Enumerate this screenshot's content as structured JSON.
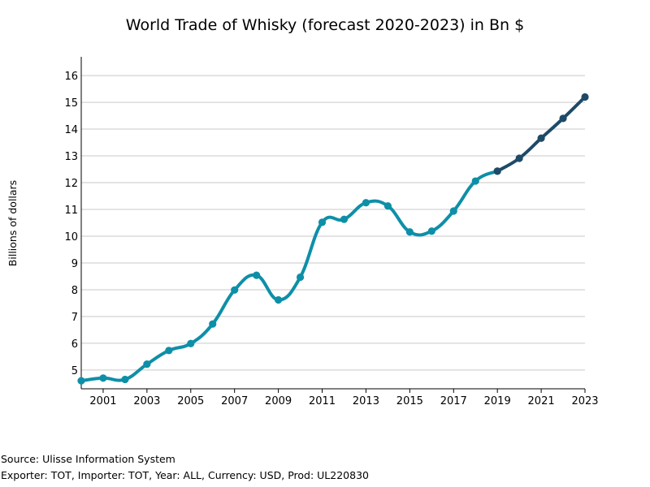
{
  "colors": {
    "actual": "#0e8fa8",
    "forecast": "#1e4a68",
    "grid": "#c9c9c9"
  },
  "footer": {
    "source": "Source: Ulisse Information System",
    "details": "Exporter: TOT, Importer: TOT, Year: ALL, Currency: USD, Prod: UL220830"
  },
  "chart_data": {
    "type": "line",
    "title": "World Trade of Whisky (forecast 2020-2023) in Bn $",
    "xlabel": "",
    "ylabel": "Billions of dollars",
    "xlim": [
      2000,
      2023
    ],
    "ylim": [
      4.3,
      16.7
    ],
    "grid": "horizontal",
    "xticks": [
      2001,
      2003,
      2005,
      2007,
      2009,
      2011,
      2013,
      2015,
      2017,
      2019,
      2021,
      2023
    ],
    "yticks": [
      5,
      6,
      7,
      8,
      9,
      10,
      11,
      12,
      13,
      14,
      15,
      16
    ],
    "series": [
      {
        "x": [
          2000,
          2001,
          2002,
          2003,
          2004,
          2005,
          2006,
          2007,
          2008,
          2009,
          2010,
          2011,
          2012,
          2013,
          2014,
          2015,
          2016,
          2017,
          2018,
          2019
        ],
        "values": [
          4.6,
          4.7,
          4.65,
          5.22,
          5.73,
          5.99,
          6.72,
          7.99,
          8.54,
          7.62,
          8.47,
          10.52,
          10.63,
          11.25,
          11.13,
          10.16,
          10.19,
          10.94,
          12.06,
          12.43
        ]
      },
      {
        "x": [
          2019,
          2020,
          2021,
          2022,
          2023
        ],
        "values": [
          12.43,
          12.91,
          13.66,
          14.4,
          15.2
        ]
      }
    ]
  }
}
